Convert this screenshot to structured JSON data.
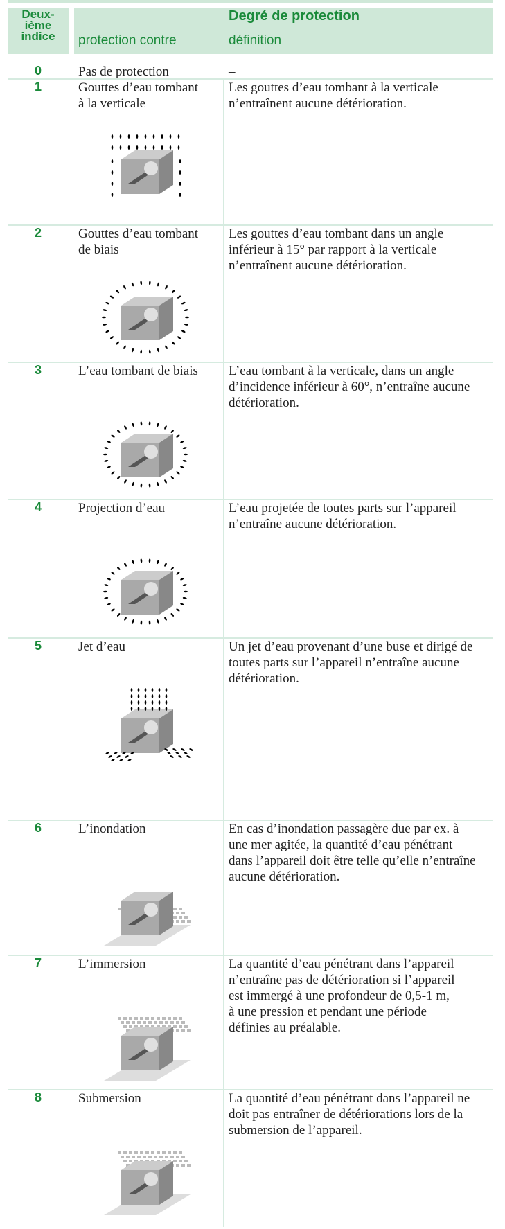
{
  "header": {
    "index_label": [
      "Deux-",
      "ième",
      "indice"
    ],
    "title": "Degré de protection",
    "col_protection": "protection contre",
    "col_definition": "définition"
  },
  "rows": [
    {
      "index": "0",
      "protection": [
        "Pas de protection"
      ],
      "definition": [
        "–"
      ]
    },
    {
      "index": "1",
      "protection": [
        "Gouttes d’eau tombant",
        "à la verticale"
      ],
      "definition": [
        "Les gouttes d’eau tombant à la verticale",
        "n’entraînent aucune détérioration."
      ]
    },
    {
      "index": "2",
      "protection": [
        "Gouttes d’eau tombant",
        "de biais"
      ],
      "definition": [
        "Les gouttes d’eau tombant dans un angle",
        "inférieur à 15° par rapport à la verticale",
        "n’entraînent aucune détérioration."
      ]
    },
    {
      "index": "3",
      "protection": [
        "L’eau tombant de biais"
      ],
      "definition": [
        "L’eau tombant à la verticale, dans un angle",
        "d’incidence inférieur à 60°, n’entraîne aucune",
        "détérioration."
      ]
    },
    {
      "index": "4",
      "protection": [
        "Projection d’eau"
      ],
      "definition": [
        "L’eau projetée de toutes parts sur l’appareil",
        "n’entraîne aucune détérioration."
      ]
    },
    {
      "index": "5",
      "protection": [
        "Jet d’eau"
      ],
      "definition": [
        "Un jet d’eau provenant d’une buse et dirigé de",
        "toutes parts sur l’appareil n’entraîne aucune",
        "détérioration."
      ]
    },
    {
      "index": "6",
      "protection": [
        "L’inondation"
      ],
      "definition": [
        "En cas d’inondation passagère due par ex. à",
        "une mer agitée, la quantité d’eau pénétrant",
        "dans l’appareil doit être telle qu’elle n’entraîne",
        "aucune détérioration."
      ]
    },
    {
      "index": "7",
      "protection": [
        "L’immersion"
      ],
      "definition": [
        "La quantité d’eau pénétrant dans l’appareil",
        "n’entraîne pas de détérioration si l’appareil",
        "est immergé à une profondeur de 0,5-1 m,",
        "à une pression et pendant une période",
        "définies au préalable."
      ]
    },
    {
      "index": "8",
      "protection": [
        "Submersion"
      ],
      "definition": [
        "La quantité d’eau pénétrant dans l’appareil ne",
        "doit pas entraîner de détériorations lors de la",
        "submersion de l’appareil."
      ]
    }
  ]
}
